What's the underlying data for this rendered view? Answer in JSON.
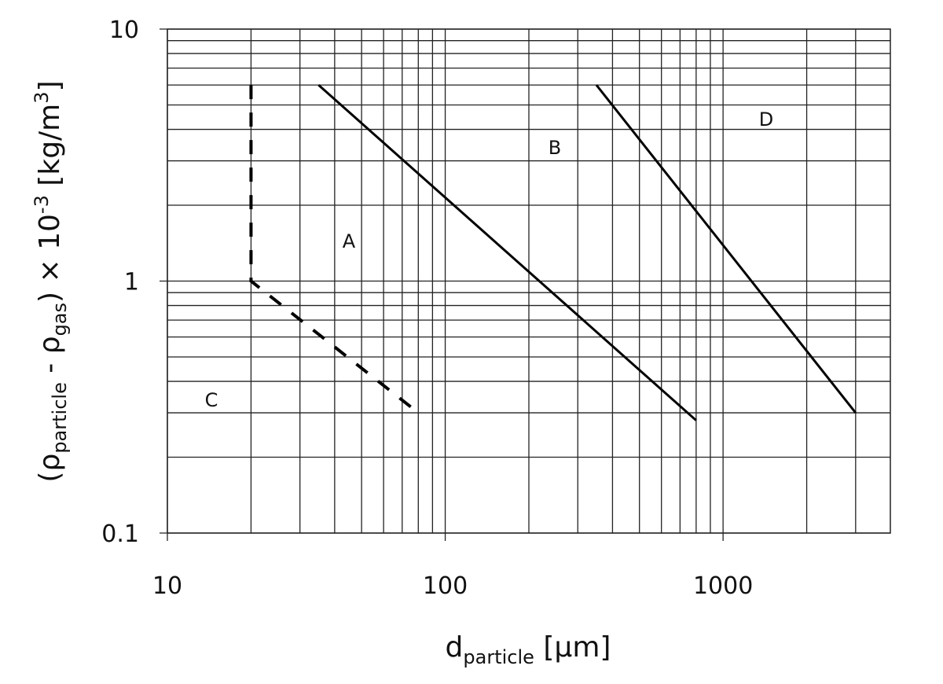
{
  "chart_data": {
    "type": "line",
    "xlabel": [
      {
        "text": "d"
      },
      {
        "text": "particle",
        "shift": "sub"
      },
      {
        "text": " [μm]"
      }
    ],
    "ylabel": [
      {
        "text": "(ρ"
      },
      {
        "text": "particle",
        "shift": "sub"
      },
      {
        "text": " - ρ"
      },
      {
        "text": "gas",
        "shift": "sub"
      },
      {
        "text": ") × 10"
      },
      {
        "text": "-3",
        "shift": "super"
      },
      {
        "text": " [kg/m"
      },
      {
        "text": "3",
        "shift": "super"
      },
      {
        "text": "]"
      }
    ],
    "xscale": "log",
    "yscale": "log",
    "xlim": [
      10,
      4000
    ],
    "ylim": [
      0.1,
      10
    ],
    "xticks": [
      10,
      100,
      1000
    ],
    "yticks": [
      0.1,
      1,
      10
    ],
    "x_minor_grid": [
      20,
      30,
      40,
      50,
      60,
      70,
      80,
      90,
      200,
      300,
      400,
      500,
      600,
      700,
      800,
      900,
      2000,
      3000
    ],
    "y_minor_grid": [
      0.2,
      0.3,
      0.4,
      0.5,
      0.6,
      0.7,
      0.8,
      0.9,
      2,
      3,
      4,
      5,
      6,
      7,
      8,
      9
    ],
    "grid": true,
    "series": [
      {
        "color": "#000000",
        "style": "dashed",
        "x": [
          20,
          20,
          80
        ],
        "y": [
          6,
          1,
          0.3
        ]
      },
      {
        "color": "#000000",
        "style": "solid",
        "x": [
          35,
          800
        ],
        "y": [
          6,
          0.28
        ]
      },
      {
        "color": "#000000",
        "style": "solid",
        "x": [
          350,
          3000
        ],
        "y": [
          6,
          0.3
        ]
      }
    ],
    "annotations": [
      "A",
      "B",
      "C",
      "D"
    ]
  }
}
